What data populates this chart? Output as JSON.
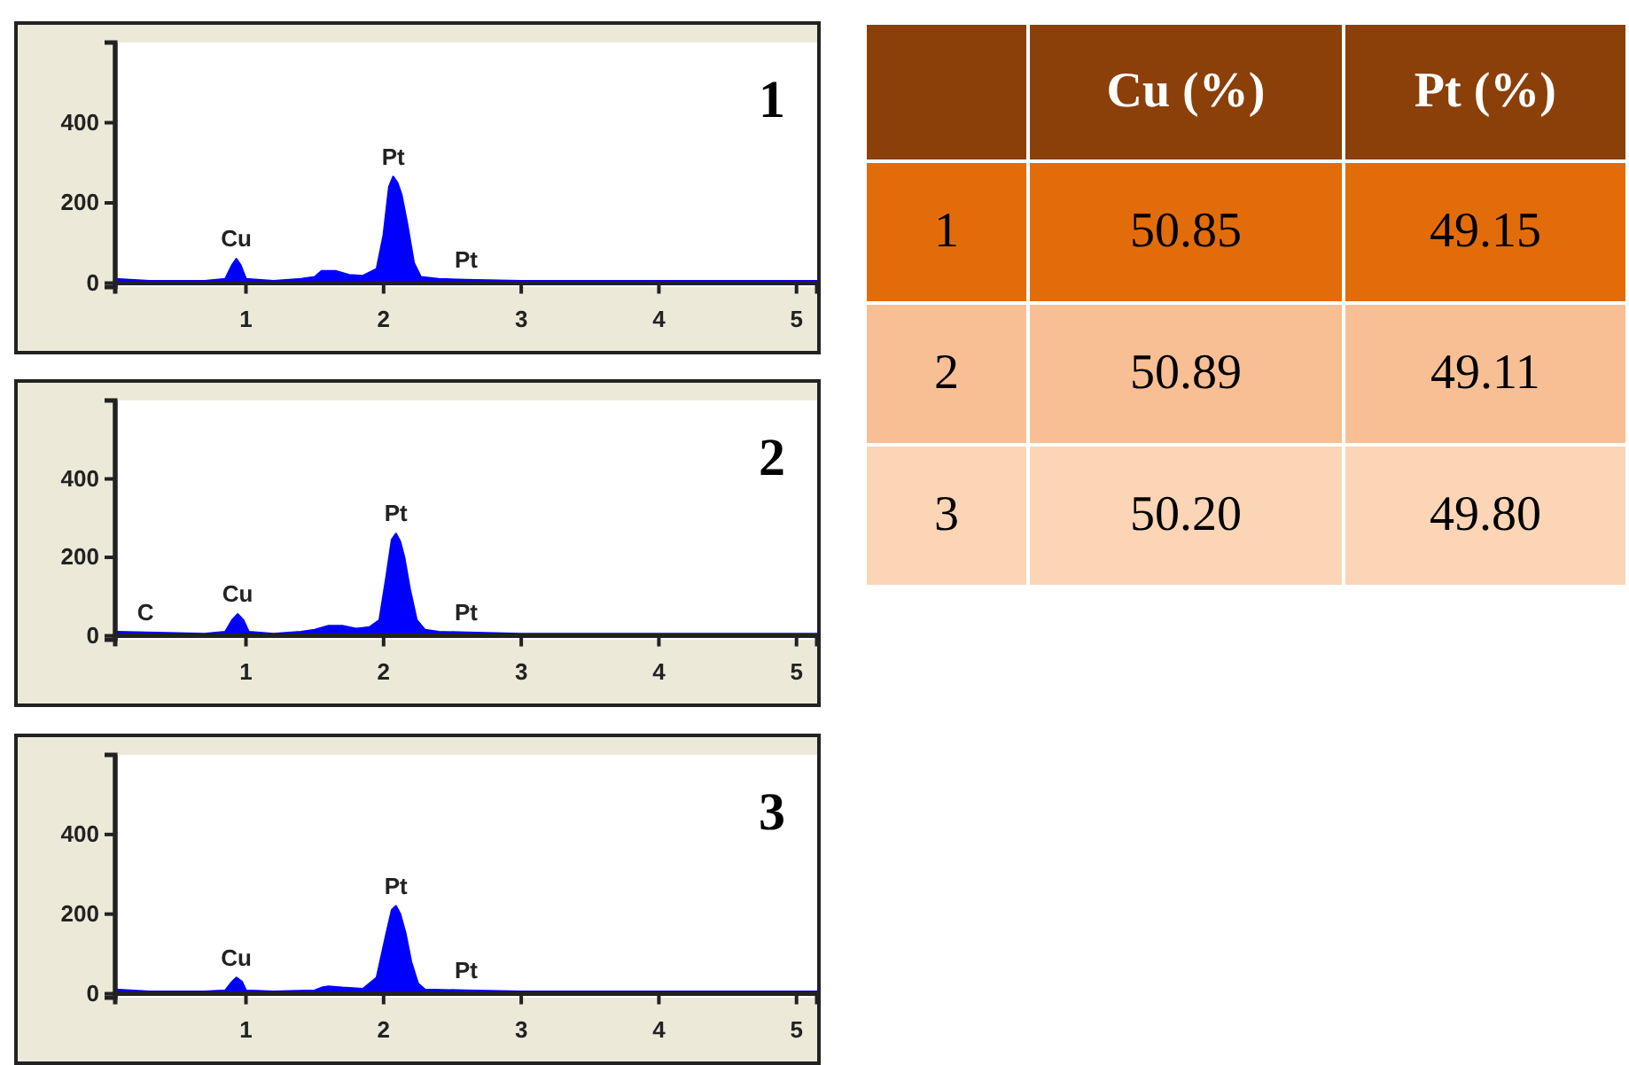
{
  "chart_data": [
    {
      "type": "area",
      "title": "1",
      "xlim": [
        0.05,
        5.15
      ],
      "ylim": [
        -10,
        600
      ],
      "xticks": [
        1,
        2,
        3,
        4,
        5
      ],
      "yticks": [
        0,
        200,
        400
      ],
      "grid": false,
      "series": [
        {
          "color": "#0000ff",
          "x": [
            0.05,
            0.3,
            0.7,
            0.85,
            0.9,
            0.93,
            0.96,
            1.0,
            1.2,
            1.4,
            1.5,
            1.55,
            1.65,
            1.75,
            1.85,
            1.95,
            2.0,
            2.04,
            2.07,
            2.1,
            2.13,
            2.17,
            2.22,
            2.27,
            2.4,
            2.6,
            3.0,
            4.0,
            5.15
          ],
          "values": [
            10,
            5,
            5,
            10,
            45,
            60,
            45,
            10,
            5,
            10,
            15,
            30,
            30,
            20,
            18,
            35,
            120,
            240,
            265,
            250,
            220,
            150,
            50,
            15,
            10,
            8,
            5,
            5,
            5
          ]
        }
      ],
      "annotations": [
        {
          "text": "Cu",
          "x": 0.93,
          "y": 60
        },
        {
          "text": "Pt",
          "x": 2.07,
          "y": 265
        },
        {
          "text": "Pt",
          "x": 2.6,
          "y": 8
        }
      ]
    },
    {
      "type": "area",
      "title": "2",
      "xlim": [
        0.05,
        5.15
      ],
      "ylim": [
        -10,
        600
      ],
      "xticks": [
        1,
        2,
        3,
        4,
        5
      ],
      "yticks": [
        0,
        200,
        400
      ],
      "grid": false,
      "series": [
        {
          "color": "#0000ff",
          "x": [
            0.05,
            0.27,
            0.7,
            0.85,
            0.9,
            0.94,
            0.98,
            1.02,
            1.2,
            1.4,
            1.5,
            1.6,
            1.7,
            1.8,
            1.9,
            1.97,
            2.02,
            2.06,
            2.09,
            2.12,
            2.15,
            2.19,
            2.24,
            2.3,
            2.4,
            2.6,
            3.0,
            4.0,
            5.15
          ],
          "values": [
            10,
            8,
            5,
            10,
            40,
            55,
            40,
            10,
            5,
            10,
            15,
            25,
            25,
            18,
            22,
            40,
            150,
            245,
            260,
            240,
            200,
            120,
            40,
            15,
            10,
            8,
            5,
            5,
            5
          ]
        }
      ],
      "annotations": [
        {
          "text": "C",
          "x": 0.27,
          "y": 8
        },
        {
          "text": "Cu",
          "x": 0.94,
          "y": 55
        },
        {
          "text": "Pt",
          "x": 2.09,
          "y": 260
        },
        {
          "text": "Pt",
          "x": 2.6,
          "y": 8
        }
      ]
    },
    {
      "type": "area",
      "title": "3",
      "xlim": [
        0.05,
        5.15
      ],
      "ylim": [
        -10,
        600
      ],
      "xticks": [
        1,
        2,
        3,
        4,
        5
      ],
      "yticks": [
        0,
        200,
        400
      ],
      "grid": false,
      "series": [
        {
          "color": "#0000ff",
          "x": [
            0.05,
            0.3,
            0.7,
            0.85,
            0.9,
            0.93,
            0.97,
            1.0,
            1.2,
            1.5,
            1.55,
            1.6,
            1.7,
            1.85,
            1.95,
            2.02,
            2.06,
            2.09,
            2.12,
            2.16,
            2.2,
            2.25,
            2.3,
            2.6,
            3.0,
            4.0,
            5.15
          ],
          "values": [
            10,
            5,
            5,
            8,
            30,
            40,
            30,
            8,
            5,
            8,
            15,
            18,
            15,
            12,
            40,
            150,
            210,
            220,
            200,
            150,
            80,
            25,
            10,
            8,
            5,
            5,
            5
          ]
        }
      ],
      "annotations": [
        {
          "text": "Cu",
          "x": 0.93,
          "y": 40
        },
        {
          "text": "Pt",
          "x": 2.09,
          "y": 220
        },
        {
          "text": "Pt",
          "x": 2.6,
          "y": 8
        }
      ]
    },
    {
      "type": "other",
      "categories": [
        "1",
        "2",
        "3"
      ],
      "series": [
        {
          "name": "Cu (%)",
          "colors": [
            "#e36c0a",
            "#f8bf95",
            "#fbd5b5"
          ],
          "values": [
            50.85,
            50.89,
            50.2
          ],
          "value_labels": [
            "50.85",
            "50.89",
            "50.20"
          ]
        },
        {
          "name": "Pt (%)",
          "colors": [
            "#e36c0a",
            "#f8bf95",
            "#fbd5b5"
          ],
          "values": [
            49.15,
            49.11,
            49.8
          ],
          "value_labels": [
            "49.15",
            "49.11",
            "49.80"
          ]
        }
      ]
    }
  ]
}
